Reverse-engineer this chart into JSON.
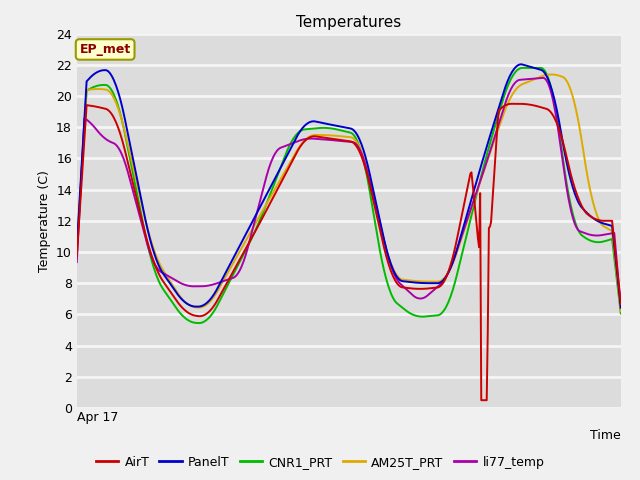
{
  "title": "Temperatures",
  "ylabel": "Temperature (C)",
  "xlabel": "Time",
  "ylim": [
    0,
    24
  ],
  "yticks": [
    0,
    2,
    4,
    6,
    8,
    10,
    12,
    14,
    16,
    18,
    20,
    22,
    24
  ],
  "x_label_text": "Apr 17",
  "annotation": "EP_met",
  "fig_bg_color": "#f0f0f0",
  "plot_bg_color": "#dcdcdc",
  "grid_color": "#f5f5f5",
  "line_colors": {
    "AirT": "#cc0000",
    "PanelT": "#0000cc",
    "CNR1_PRT": "#00bb00",
    "AM25T_PRT": "#ddaa00",
    "li77_temp": "#aa00aa"
  },
  "legend_labels": [
    "AirT",
    "PanelT",
    "CNR1_PRT",
    "AM25T_PRT",
    "li77_temp"
  ],
  "figsize": [
    6.4,
    4.8
  ],
  "dpi": 100
}
